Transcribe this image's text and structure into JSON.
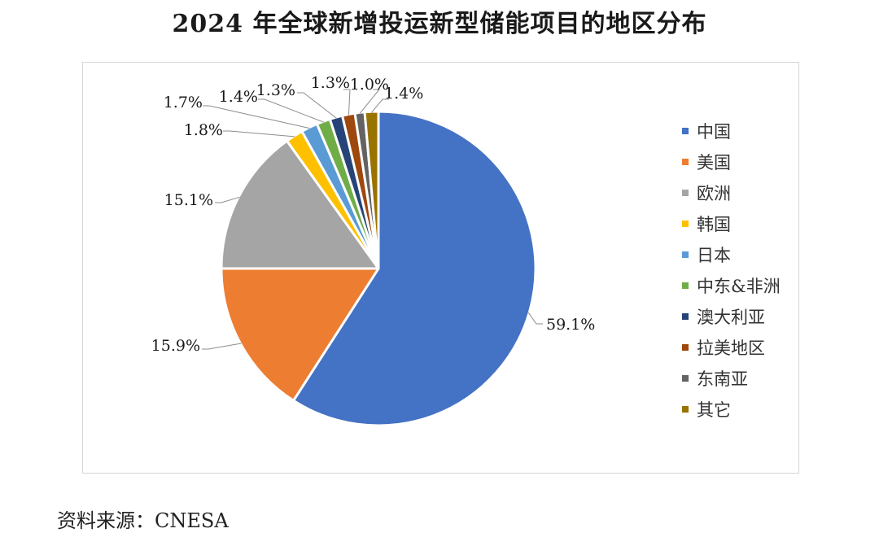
{
  "title": "2024 年全球新增投运新型储能项目的地区分布",
  "source": {
    "label": "资料来源：",
    "value": "CNESA"
  },
  "chart_data": {
    "type": "pie",
    "slices": [
      {
        "name": "中国",
        "value": 59.1,
        "label": "59.1%",
        "color": "#4472C4"
      },
      {
        "name": "美国",
        "value": 15.9,
        "label": "15.9%",
        "color": "#ED7D31"
      },
      {
        "name": "欧洲",
        "value": 15.1,
        "label": "15.1%",
        "color": "#A5A5A5"
      },
      {
        "name": "韩国",
        "value": 1.8,
        "label": "1.8%",
        "color": "#FFC000"
      },
      {
        "name": "日本",
        "value": 1.7,
        "label": "1.7%",
        "color": "#5B9BD5"
      },
      {
        "name": "中东&非洲",
        "value": 1.4,
        "label": "1.4%",
        "color": "#70AD47"
      },
      {
        "name": "澳大利亚",
        "value": 1.3,
        "label": "1.3%",
        "color": "#264478"
      },
      {
        "name": "拉美地区",
        "value": 1.3,
        "label": "1.3%",
        "color": "#9E480E"
      },
      {
        "name": "东南亚",
        "value": 1.0,
        "label": "1.0%",
        "color": "#636363"
      },
      {
        "name": "其它",
        "value": 1.4,
        "label": "1.4%",
        "color": "#997300"
      }
    ],
    "legend_position": "right"
  }
}
